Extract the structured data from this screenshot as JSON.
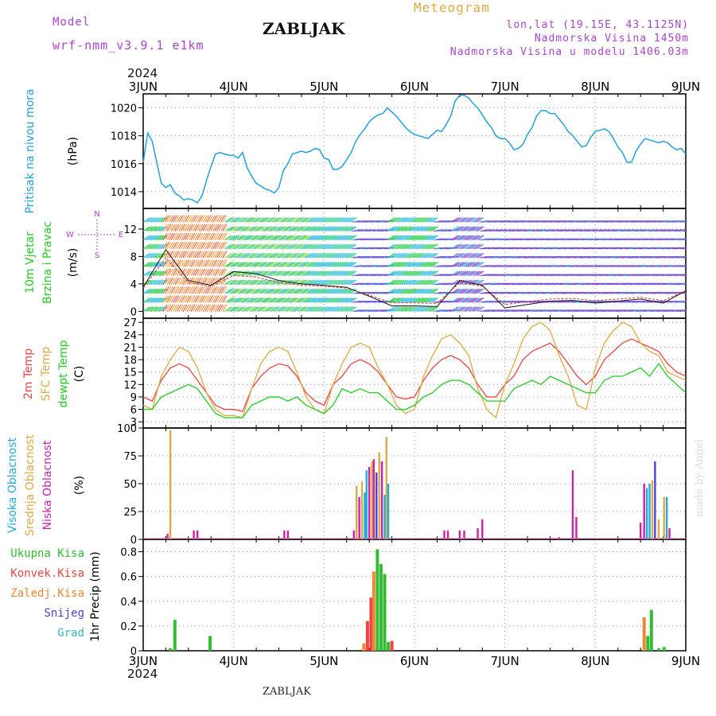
{
  "header": {
    "model_label": "Model",
    "model_name": "wrf-nmm_v3.9.1 e1km",
    "title": "ZABLJAK",
    "meteogram": "Meteogram",
    "lonlat": "lon,lat (19.15E, 43.1125N)",
    "elevation": "Nadmorska Visina 1450m",
    "model_elevation": "Nadmorska Visina u modelu 1406.03m",
    "year_top": "2024",
    "year_bottom": "2024",
    "bottom_name": "ZABLJAK",
    "credit": "made by Angel"
  },
  "colors": {
    "pressure": "#22a2dd",
    "temp2m": "#ee4444",
    "sfc": "#ddaa44",
    "dewpt": "#22cc22",
    "violet": "#aa44cc",
    "high_cloud": "#22aadd",
    "mid_cloud": "#ddaa44",
    "low_cloud": "#cc22aa",
    "total_precip": "#33bb33",
    "conv_precip": "#ee4444",
    "frozen_precip": "#ee8833",
    "snow": "#4444dd",
    "hail": "#33bbbb",
    "blue_cloud": "#4444dd"
  },
  "chart_data": [
    {
      "type": "line",
      "panel": "pressure",
      "ylabel": [
        "Pritisak na nivou mora",
        "(hPa)"
      ],
      "ylim": [
        1012.8,
        1021
      ],
      "yticks": [
        1014,
        1016,
        1018,
        1020
      ],
      "x_days": [
        "3JUN",
        "4JUN",
        "5JUN",
        "6JUN",
        "7JUN",
        "8JUN",
        "9JUN"
      ],
      "x": [
        0,
        0.05,
        0.1,
        0.15,
        0.2,
        0.25,
        0.3,
        0.35,
        0.4,
        0.45,
        0.5,
        0.55,
        0.6,
        0.65,
        0.7,
        0.75,
        0.8,
        0.85,
        0.9,
        0.95,
        1.0,
        1.05,
        1.1,
        1.15,
        1.2,
        1.25,
        1.3,
        1.35,
        1.4,
        1.45,
        1.5,
        1.55,
        1.6,
        1.65,
        1.7,
        1.75,
        1.8,
        1.85,
        1.9,
        1.95,
        2.0,
        2.05,
        2.1,
        2.15,
        2.2,
        2.25,
        2.3,
        2.35,
        2.4,
        2.45,
        2.5,
        2.55,
        2.6,
        2.65,
        2.7,
        2.75,
        2.8,
        2.85,
        2.9,
        2.95,
        3.0,
        3.05,
        3.1,
        3.15,
        3.2,
        3.25,
        3.3,
        3.35,
        3.4,
        3.45,
        3.5,
        3.55,
        3.6,
        3.65,
        3.7,
        3.75,
        3.8,
        3.85,
        3.9,
        3.95,
        4.0,
        4.05,
        4.1,
        4.15,
        4.2,
        4.25,
        4.3,
        4.35,
        4.4,
        4.45,
        4.5,
        4.55,
        4.6,
        4.65,
        4.7,
        4.75,
        4.8,
        4.85,
        4.9,
        4.95,
        5.0,
        5.05,
        5.1,
        5.15,
        5.2,
        5.25,
        5.3,
        5.35,
        5.4,
        5.45,
        5.5,
        5.55,
        5.6,
        5.65,
        5.7,
        5.75,
        5.8,
        5.85,
        5.9,
        5.95,
        6.0
      ],
      "series": [
        {
          "name": "",
          "color_key": "pressure",
          "values": [
            1016.1,
            1018.2,
            1017.6,
            1016.1,
            1014.6,
            1014.3,
            1014.5,
            1013.9,
            1013.7,
            1013.4,
            1013.5,
            1013.4,
            1013.2,
            1013.7,
            1014.8,
            1015.8,
            1016.7,
            1016.8,
            1016.7,
            1016.6,
            1016.6,
            1016.4,
            1016.8,
            1015.7,
            1015.1,
            1014.6,
            1014.4,
            1014.2,
            1014.1,
            1013.9,
            1014.3,
            1015.5,
            1016.0,
            1016.7,
            1016.8,
            1016.9,
            1016.8,
            1016.9,
            1017.1,
            1017.0,
            1016.4,
            1016.3,
            1015.6,
            1015.6,
            1015.8,
            1016.3,
            1016.8,
            1017.6,
            1018.1,
            1018.5,
            1019.0,
            1019.3,
            1019.5,
            1019.6,
            1020.0,
            1019.7,
            1019.4,
            1019.0,
            1018.6,
            1018.3,
            1018.1,
            1018.0,
            1017.9,
            1017.8,
            1018.1,
            1018.4,
            1018.3,
            1018.8,
            1019.4,
            1020.5,
            1020.9,
            1020.9,
            1020.7,
            1020.3,
            1020.0,
            1019.5,
            1019.0,
            1018.6,
            1018.0,
            1017.8,
            1017.8,
            1017.5,
            1017.0,
            1017.1,
            1017.4,
            1018.1,
            1018.6,
            1019.4,
            1019.8,
            1019.8,
            1019.6,
            1019.6,
            1019.2,
            1018.8,
            1018.3,
            1018.0,
            1017.6,
            1017.2,
            1017.3,
            1017.9,
            1018.3,
            1018.4,
            1018.5,
            1018.3,
            1017.8,
            1017.2,
            1016.8,
            1016.1,
            1016.1,
            1016.9,
            1017.4,
            1017.8,
            1017.7,
            1017.6,
            1017.5,
            1017.6,
            1017.5,
            1017.2,
            1017.0,
            1017.1,
            1016.7
          ]
        }
      ]
    },
    {
      "type": "barbs",
      "panel": "wind",
      "ylabel": [
        "10m Vjetar",
        "Brzina i Pravac",
        "(m/s)"
      ],
      "compass": {
        "n": "N",
        "w": "W",
        "e": "E",
        "s": "S"
      },
      "ylim": [
        -1,
        15
      ],
      "yticks": [
        0,
        4,
        8,
        12
      ],
      "x": [
        0,
        0.25,
        0.5,
        0.75,
        1.0,
        1.25,
        1.5,
        1.75,
        2.0,
        2.25,
        2.5,
        2.75,
        3.0,
        3.25,
        3.5,
        3.75,
        4.0,
        4.25,
        4.5,
        4.75,
        5.0,
        5.25,
        5.5,
        5.75,
        6.0
      ],
      "speed": [
        3.5,
        9.0,
        4.5,
        3.8,
        5.8,
        5.5,
        4.5,
        4.0,
        3.8,
        3.5,
        2.2,
        0.8,
        0.8,
        0.7,
        4.5,
        3.8,
        0.5,
        1.0,
        1.5,
        1.6,
        1.2,
        1.5,
        1.8,
        1.2,
        3.0
      ]
    },
    {
      "type": "line",
      "panel": "temperature",
      "ylabel": [
        "2m Temp",
        "SFC Temp",
        "dewpt Temp",
        "(C)"
      ],
      "ylim": [
        1.5,
        28
      ],
      "yticks": [
        3,
        6,
        9,
        12,
        15,
        18,
        21,
        24,
        27
      ],
      "x": [
        0,
        0.1,
        0.2,
        0.3,
        0.4,
        0.5,
        0.6,
        0.7,
        0.8,
        0.9,
        1.0,
        1.1,
        1.2,
        1.3,
        1.4,
        1.5,
        1.6,
        1.7,
        1.8,
        1.9,
        2.0,
        2.1,
        2.2,
        2.3,
        2.4,
        2.5,
        2.6,
        2.7,
        2.8,
        2.9,
        3.0,
        3.1,
        3.2,
        3.3,
        3.4,
        3.5,
        3.6,
        3.7,
        3.8,
        3.9,
        4.0,
        4.1,
        4.2,
        4.3,
        4.4,
        4.5,
        4.6,
        4.7,
        4.8,
        4.9,
        5.0,
        5.1,
        5.2,
        5.3,
        5.4,
        5.5,
        5.6,
        5.7,
        5.8,
        5.9,
        6.0
      ],
      "series": [
        {
          "name": "2m Temp",
          "color_key": "temp2m",
          "values": [
            9,
            8,
            13,
            16,
            17,
            16,
            13,
            10,
            7,
            6,
            6,
            5.5,
            11,
            14,
            16,
            17,
            16.5,
            14,
            10,
            8,
            7,
            12,
            14,
            17,
            18,
            17,
            15,
            12,
            9,
            8.5,
            9,
            13,
            16,
            18,
            19,
            18,
            16,
            12,
            9,
            9,
            12,
            14,
            18,
            20,
            21,
            22,
            20,
            17,
            14,
            12,
            14,
            18,
            20,
            22,
            23,
            22,
            21,
            20,
            17,
            15,
            14
          ]
        },
        {
          "name": "SFC Temp",
          "color_key": "sfc",
          "values": [
            7,
            6,
            14,
            18,
            21,
            20,
            16,
            10,
            6,
            4.5,
            4.5,
            4,
            11,
            17,
            20,
            21,
            20,
            15,
            9,
            6,
            5,
            12,
            17,
            21,
            22,
            21,
            16,
            12,
            7,
            5,
            6,
            14,
            19,
            23,
            24,
            22,
            19,
            11,
            6,
            4,
            12,
            17,
            23,
            26,
            27,
            25,
            19,
            14,
            7,
            6,
            16,
            22,
            25,
            27,
            26,
            22,
            20,
            19,
            15,
            14,
            13
          ]
        },
        {
          "name": "dewpt Temp",
          "color_key": "dewpt",
          "values": [
            6,
            6,
            9,
            10,
            11,
            12,
            11,
            8,
            5,
            4,
            4,
            4,
            7,
            8,
            9,
            9,
            8,
            9,
            7,
            6,
            5,
            7,
            11,
            10,
            11,
            10,
            10,
            8,
            6,
            6,
            7,
            9,
            10,
            12,
            13,
            13,
            12,
            10,
            8,
            8,
            8,
            11,
            12,
            13,
            12,
            14,
            13,
            12,
            11,
            10,
            10,
            13,
            14,
            14,
            15,
            16,
            14,
            17,
            14,
            12,
            10
          ]
        }
      ]
    },
    {
      "type": "bar",
      "panel": "cloud",
      "ylabel": [
        "Visoka Oblacnost",
        "Srednja Oblacnost",
        "Niska Oblacnost",
        "(%)"
      ],
      "ylim": [
        0,
        100
      ],
      "yticks": [
        0,
        25,
        50,
        75,
        100
      ],
      "bars": [
        {
          "x": 0.27,
          "v": 5,
          "color_key": "low_cloud"
        },
        {
          "x": 0.3,
          "v": 98,
          "color_key": "mid_cloud"
        },
        {
          "x": 0.56,
          "v": 8,
          "color_key": "low_cloud"
        },
        {
          "x": 0.6,
          "v": 8,
          "color_key": "low_cloud"
        },
        {
          "x": 1.56,
          "v": 8,
          "color_key": "low_cloud"
        },
        {
          "x": 1.6,
          "v": 8,
          "color_key": "low_cloud"
        },
        {
          "x": 2.33,
          "v": 8,
          "color_key": "low_cloud"
        },
        {
          "x": 2.36,
          "v": 48,
          "color_key": "mid_cloud"
        },
        {
          "x": 2.39,
          "v": 38,
          "color_key": "low_cloud"
        },
        {
          "x": 2.42,
          "v": 52,
          "color_key": "mid_cloud"
        },
        {
          "x": 2.45,
          "v": 42,
          "color_key": "high_cloud"
        },
        {
          "x": 2.47,
          "v": 62,
          "color_key": "high_cloud"
        },
        {
          "x": 2.5,
          "v": 65,
          "color_key": "low_cloud"
        },
        {
          "x": 2.53,
          "v": 70,
          "color_key": "mid_cloud"
        },
        {
          "x": 2.55,
          "v": 72,
          "color_key": "low_cloud"
        },
        {
          "x": 2.58,
          "v": 60,
          "color_key": "blue_cloud"
        },
        {
          "x": 2.61,
          "v": 78,
          "color_key": "mid_cloud"
        },
        {
          "x": 2.64,
          "v": 70,
          "color_key": "low_cloud"
        },
        {
          "x": 2.67,
          "v": 40,
          "color_key": "high_cloud"
        },
        {
          "x": 2.69,
          "v": 92,
          "color_key": "mid_cloud"
        },
        {
          "x": 2.71,
          "v": 50,
          "color_key": "high_cloud"
        },
        {
          "x": 3.33,
          "v": 8,
          "color_key": "low_cloud"
        },
        {
          "x": 3.37,
          "v": 8,
          "color_key": "low_cloud"
        },
        {
          "x": 3.5,
          "v": 8,
          "color_key": "low_cloud"
        },
        {
          "x": 3.55,
          "v": 8,
          "color_key": "low_cloud"
        },
        {
          "x": 3.7,
          "v": 10,
          "color_key": "low_cloud"
        },
        {
          "x": 3.75,
          "v": 18,
          "color_key": "low_cloud"
        },
        {
          "x": 4.6,
          "v": 2,
          "color_key": "low_cloud"
        },
        {
          "x": 4.75,
          "v": 62,
          "color_key": "low_cloud"
        },
        {
          "x": 4.79,
          "v": 20,
          "color_key": "low_cloud"
        },
        {
          "x": 5.5,
          "v": 15,
          "color_key": "low_cloud"
        },
        {
          "x": 5.54,
          "v": 50,
          "color_key": "low_cloud"
        },
        {
          "x": 5.57,
          "v": 46,
          "color_key": "high_cloud"
        },
        {
          "x": 5.6,
          "v": 50,
          "color_key": "high_cloud"
        },
        {
          "x": 5.63,
          "v": 53,
          "color_key": "mid_cloud"
        },
        {
          "x": 5.66,
          "v": 70,
          "color_key": "blue_cloud"
        },
        {
          "x": 5.7,
          "v": 18,
          "color_key": "mid_cloud"
        },
        {
          "x": 5.76,
          "v": 38,
          "color_key": "mid_cloud"
        },
        {
          "x": 5.79,
          "v": 38,
          "color_key": "high_cloud"
        },
        {
          "x": 5.82,
          "v": 10,
          "color_key": "low_cloud"
        }
      ]
    },
    {
      "type": "bar",
      "panel": "precip",
      "legend": [
        "Ukupna Kisa",
        "Konvek.Kisa",
        "Zaledj.Kisa",
        "Snijeg",
        "Grad"
      ],
      "ylabel": [
        "1hr Precip (mm)"
      ],
      "ylim": [
        0,
        0.9
      ],
      "yticks": [
        0,
        0.2,
        0.4,
        0.6,
        0.8
      ],
      "yticklabels": [
        "0",
        "0.2",
        "0.4",
        "0.6",
        "0.8"
      ],
      "bars": [
        {
          "x": 0.3,
          "v": 0.02,
          "color_key": "total_precip"
        },
        {
          "x": 0.35,
          "v": 0.25,
          "color_key": "total_precip"
        },
        {
          "x": 0.74,
          "v": 0.12,
          "color_key": "total_precip"
        },
        {
          "x": 2.44,
          "v": 0.06,
          "color_key": "frozen_precip"
        },
        {
          "x": 2.48,
          "v": 0.24,
          "color_key": "conv_precip"
        },
        {
          "x": 2.52,
          "v": 0.43,
          "color_key": "conv_precip"
        },
        {
          "x": 2.55,
          "v": 0.64,
          "color_key": "frozen_precip"
        },
        {
          "x": 2.59,
          "v": 0.82,
          "color_key": "total_precip"
        },
        {
          "x": 2.63,
          "v": 0.7,
          "color_key": "total_precip"
        },
        {
          "x": 2.67,
          "v": 0.62,
          "color_key": "total_precip"
        },
        {
          "x": 2.71,
          "v": 0.07,
          "color_key": "total_precip"
        },
        {
          "x": 2.75,
          "v": 0.08,
          "color_key": "conv_precip"
        },
        {
          "x": 5.54,
          "v": 0.27,
          "color_key": "frozen_precip"
        },
        {
          "x": 5.58,
          "v": 0.12,
          "color_key": "total_precip"
        },
        {
          "x": 5.62,
          "v": 0.33,
          "color_key": "total_precip"
        },
        {
          "x": 5.7,
          "v": 0.02,
          "color_key": "total_precip"
        },
        {
          "x": 5.76,
          "v": 0.03,
          "color_key": "total_precip"
        }
      ]
    }
  ]
}
